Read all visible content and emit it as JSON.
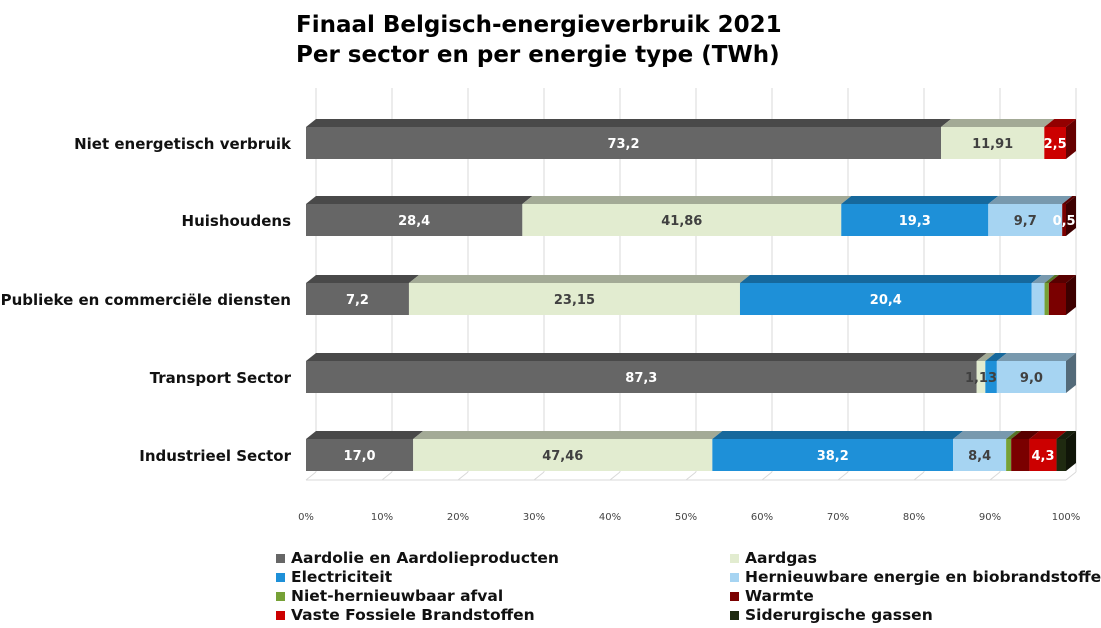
{
  "chart_data": {
    "type": "bar",
    "orientation": "horizontal",
    "stacked": "percent",
    "title": "Finaal Belgisch-energieverbruik 2021",
    "subtitle": "Per sector en per energie type (TWh)",
    "categories": [
      "Niet energetisch verbruik",
      "Huishoudens",
      "Publieke en commerciële diensten",
      "Transport Sector",
      "Industrieel Sector"
    ],
    "series": [
      {
        "name": "Aardolie en Aardolieproducten",
        "color": "#666666",
        "values": [
          73.2,
          28.4,
          7.2,
          87.3,
          17.0
        ],
        "labels": [
          "73,2",
          "28,4",
          "7,2",
          "87,3",
          "17,0"
        ]
      },
      {
        "name": "Aardgas",
        "color": "#e2ecd0",
        "values": [
          11.91,
          41.86,
          23.15,
          1.13,
          47.46
        ],
        "labels": [
          "11,91",
          "41,86",
          "23,15",
          "1,13",
          "47,46"
        ]
      },
      {
        "name": "Electriciteit",
        "color": "#1e90d8",
        "values": [
          0,
          19.3,
          20.4,
          1.5,
          38.2
        ],
        "labels": [
          "",
          "19,3",
          "20,4",
          "",
          "38,2"
        ]
      },
      {
        "name": "Hernieuwbare energie en biobrandstoffen",
        "color": "#a6d4f2",
        "values": [
          0,
          9.7,
          0.9,
          9.0,
          8.4
        ],
        "labels": [
          "",
          "9,7",
          "",
          "9,0",
          "8,4"
        ]
      },
      {
        "name": "Niet-hernieuwbaar afval",
        "color": "#76a136",
        "values": [
          0,
          0,
          0.3,
          0,
          0.8
        ],
        "labels": [
          "",
          "",
          "",
          "",
          ""
        ]
      },
      {
        "name": "Warmte",
        "color": "#7a0000",
        "values": [
          0,
          0.5,
          1.2,
          0,
          2.9
        ],
        "labels": [
          "",
          "0,5",
          "",
          "",
          ""
        ]
      },
      {
        "name": "Vaste Fossiele Brandstoffen",
        "color": "#cc0000",
        "values": [
          2.5,
          0,
          0,
          0,
          4.3
        ],
        "labels": [
          "2,5",
          "",
          "",
          "",
          "4,3"
        ]
      },
      {
        "name": "Siderurgische gassen",
        "color": "#1f2a10",
        "values": [
          0,
          0,
          0,
          0,
          1.5
        ],
        "labels": [
          "",
          "",
          "",
          "",
          ""
        ]
      }
    ],
    "xlim": [
      0,
      100
    ],
    "xticks": [
      "0%",
      "10%",
      "20%",
      "30%",
      "40%",
      "50%",
      "60%",
      "70%",
      "80%",
      "90%",
      "100%"
    ],
    "grid": true,
    "legend_position": "bottom"
  },
  "legend": [
    {
      "label": "Aardolie en Aardolieproducten",
      "color": "#666666"
    },
    {
      "label": "Aardgas",
      "color": "#e2ecd0"
    },
    {
      "label": "Electriciteit",
      "color": "#1e90d8"
    },
    {
      "label": "Hernieuwbare energie en biobrandstoffen",
      "color": "#a6d4f2"
    },
    {
      "label": "Niet-hernieuwbaar afval",
      "color": "#76a136"
    },
    {
      "label": "Warmte",
      "color": "#7a0000"
    },
    {
      "label": " Vaste Fossiele Brandstoffen",
      "color": "#cc0000"
    },
    {
      "label": "Siderurgische gassen",
      "color": "#1f2a10"
    }
  ]
}
